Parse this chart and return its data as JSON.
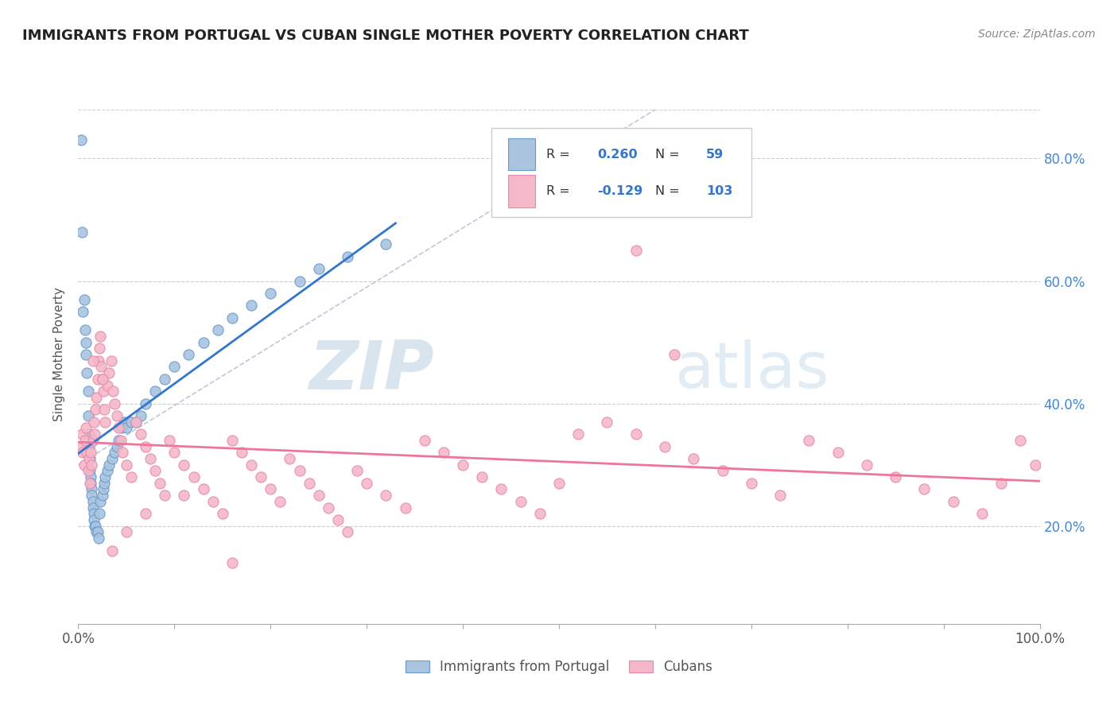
{
  "title": "IMMIGRANTS FROM PORTUGAL VS CUBAN SINGLE MOTHER POVERTY CORRELATION CHART",
  "source": "Source: ZipAtlas.com",
  "ylabel": "Single Mother Poverty",
  "ytick_labels": [
    "20.0%",
    "40.0%",
    "60.0%",
    "80.0%"
  ],
  "ytick_values": [
    0.2,
    0.4,
    0.6,
    0.8
  ],
  "xlim": [
    0.0,
    1.0
  ],
  "ylim": [
    0.04,
    0.92
  ],
  "portugal_color": "#aac4e0",
  "portugal_edge_color": "#6699cc",
  "cuban_color": "#f4b8c8",
  "cuban_edge_color": "#e888aa",
  "trendline_portugal_color": "#3377cc",
  "trendline_cuban_color": "#ee7799",
  "trendline_dashed_color": "#aabbcc",
  "legend_label_portugal": "Immigrants from Portugal",
  "legend_label_cuban": "Cubans",
  "watermark_zip": "ZIP",
  "watermark_atlas": "atlas",
  "portugal_N": 59,
  "cuban_N": 103,
  "portugal_R": "0.260",
  "cuban_R": "-0.129",
  "port_x": [
    0.005,
    0.006,
    0.007,
    0.008,
    0.009,
    0.01,
    0.01,
    0.011,
    0.011,
    0.012,
    0.012,
    0.013,
    0.013,
    0.014,
    0.014,
    0.015,
    0.015,
    0.016,
    0.016,
    0.017,
    0.018,
    0.019,
    0.02,
    0.021,
    0.022,
    0.023,
    0.025,
    0.026,
    0.027,
    0.028,
    0.03,
    0.032,
    0.035,
    0.038,
    0.04,
    0.042,
    0.045,
    0.048,
    0.05,
    0.055,
    0.06,
    0.065,
    0.07,
    0.08,
    0.09,
    0.1,
    0.115,
    0.13,
    0.145,
    0.16,
    0.18,
    0.2,
    0.23,
    0.25,
    0.28,
    0.32,
    0.003,
    0.004,
    0.008
  ],
  "port_y": [
    0.55,
    0.57,
    0.52,
    0.48,
    0.45,
    0.42,
    0.38,
    0.35,
    0.33,
    0.31,
    0.29,
    0.28,
    0.27,
    0.26,
    0.25,
    0.24,
    0.23,
    0.22,
    0.21,
    0.2,
    0.2,
    0.19,
    0.19,
    0.18,
    0.22,
    0.24,
    0.25,
    0.26,
    0.27,
    0.28,
    0.29,
    0.3,
    0.31,
    0.32,
    0.33,
    0.34,
    0.36,
    0.37,
    0.36,
    0.37,
    0.37,
    0.38,
    0.4,
    0.42,
    0.44,
    0.46,
    0.48,
    0.5,
    0.52,
    0.54,
    0.56,
    0.58,
    0.6,
    0.62,
    0.64,
    0.66,
    0.83,
    0.68,
    0.5
  ],
  "cub_x": [
    0.003,
    0.004,
    0.005,
    0.006,
    0.007,
    0.008,
    0.009,
    0.01,
    0.011,
    0.012,
    0.013,
    0.014,
    0.015,
    0.016,
    0.017,
    0.018,
    0.019,
    0.02,
    0.021,
    0.022,
    0.023,
    0.024,
    0.025,
    0.026,
    0.027,
    0.028,
    0.03,
    0.032,
    0.034,
    0.036,
    0.038,
    0.04,
    0.042,
    0.044,
    0.046,
    0.05,
    0.055,
    0.06,
    0.065,
    0.07,
    0.075,
    0.08,
    0.085,
    0.09,
    0.095,
    0.1,
    0.11,
    0.12,
    0.13,
    0.14,
    0.15,
    0.16,
    0.17,
    0.18,
    0.19,
    0.2,
    0.21,
    0.22,
    0.23,
    0.24,
    0.25,
    0.26,
    0.27,
    0.28,
    0.29,
    0.3,
    0.32,
    0.34,
    0.36,
    0.38,
    0.4,
    0.42,
    0.44,
    0.46,
    0.48,
    0.5,
    0.52,
    0.55,
    0.58,
    0.61,
    0.64,
    0.67,
    0.7,
    0.73,
    0.76,
    0.79,
    0.82,
    0.85,
    0.88,
    0.91,
    0.94,
    0.96,
    0.98,
    0.995,
    0.58,
    0.62,
    0.015,
    0.025,
    0.035,
    0.05,
    0.07,
    0.11,
    0.16
  ],
  "cub_y": [
    0.33,
    0.35,
    0.32,
    0.3,
    0.34,
    0.36,
    0.32,
    0.29,
    0.31,
    0.27,
    0.32,
    0.3,
    0.34,
    0.37,
    0.35,
    0.39,
    0.41,
    0.44,
    0.47,
    0.49,
    0.51,
    0.46,
    0.44,
    0.42,
    0.39,
    0.37,
    0.43,
    0.45,
    0.47,
    0.42,
    0.4,
    0.38,
    0.36,
    0.34,
    0.32,
    0.3,
    0.28,
    0.37,
    0.35,
    0.33,
    0.31,
    0.29,
    0.27,
    0.25,
    0.34,
    0.32,
    0.3,
    0.28,
    0.26,
    0.24,
    0.22,
    0.34,
    0.32,
    0.3,
    0.28,
    0.26,
    0.24,
    0.31,
    0.29,
    0.27,
    0.25,
    0.23,
    0.21,
    0.19,
    0.29,
    0.27,
    0.25,
    0.23,
    0.34,
    0.32,
    0.3,
    0.28,
    0.26,
    0.24,
    0.22,
    0.27,
    0.35,
    0.37,
    0.35,
    0.33,
    0.31,
    0.29,
    0.27,
    0.25,
    0.34,
    0.32,
    0.3,
    0.28,
    0.26,
    0.24,
    0.22,
    0.27,
    0.34,
    0.3,
    0.65,
    0.48,
    0.47,
    0.44,
    0.16,
    0.19,
    0.22,
    0.25,
    0.14
  ]
}
